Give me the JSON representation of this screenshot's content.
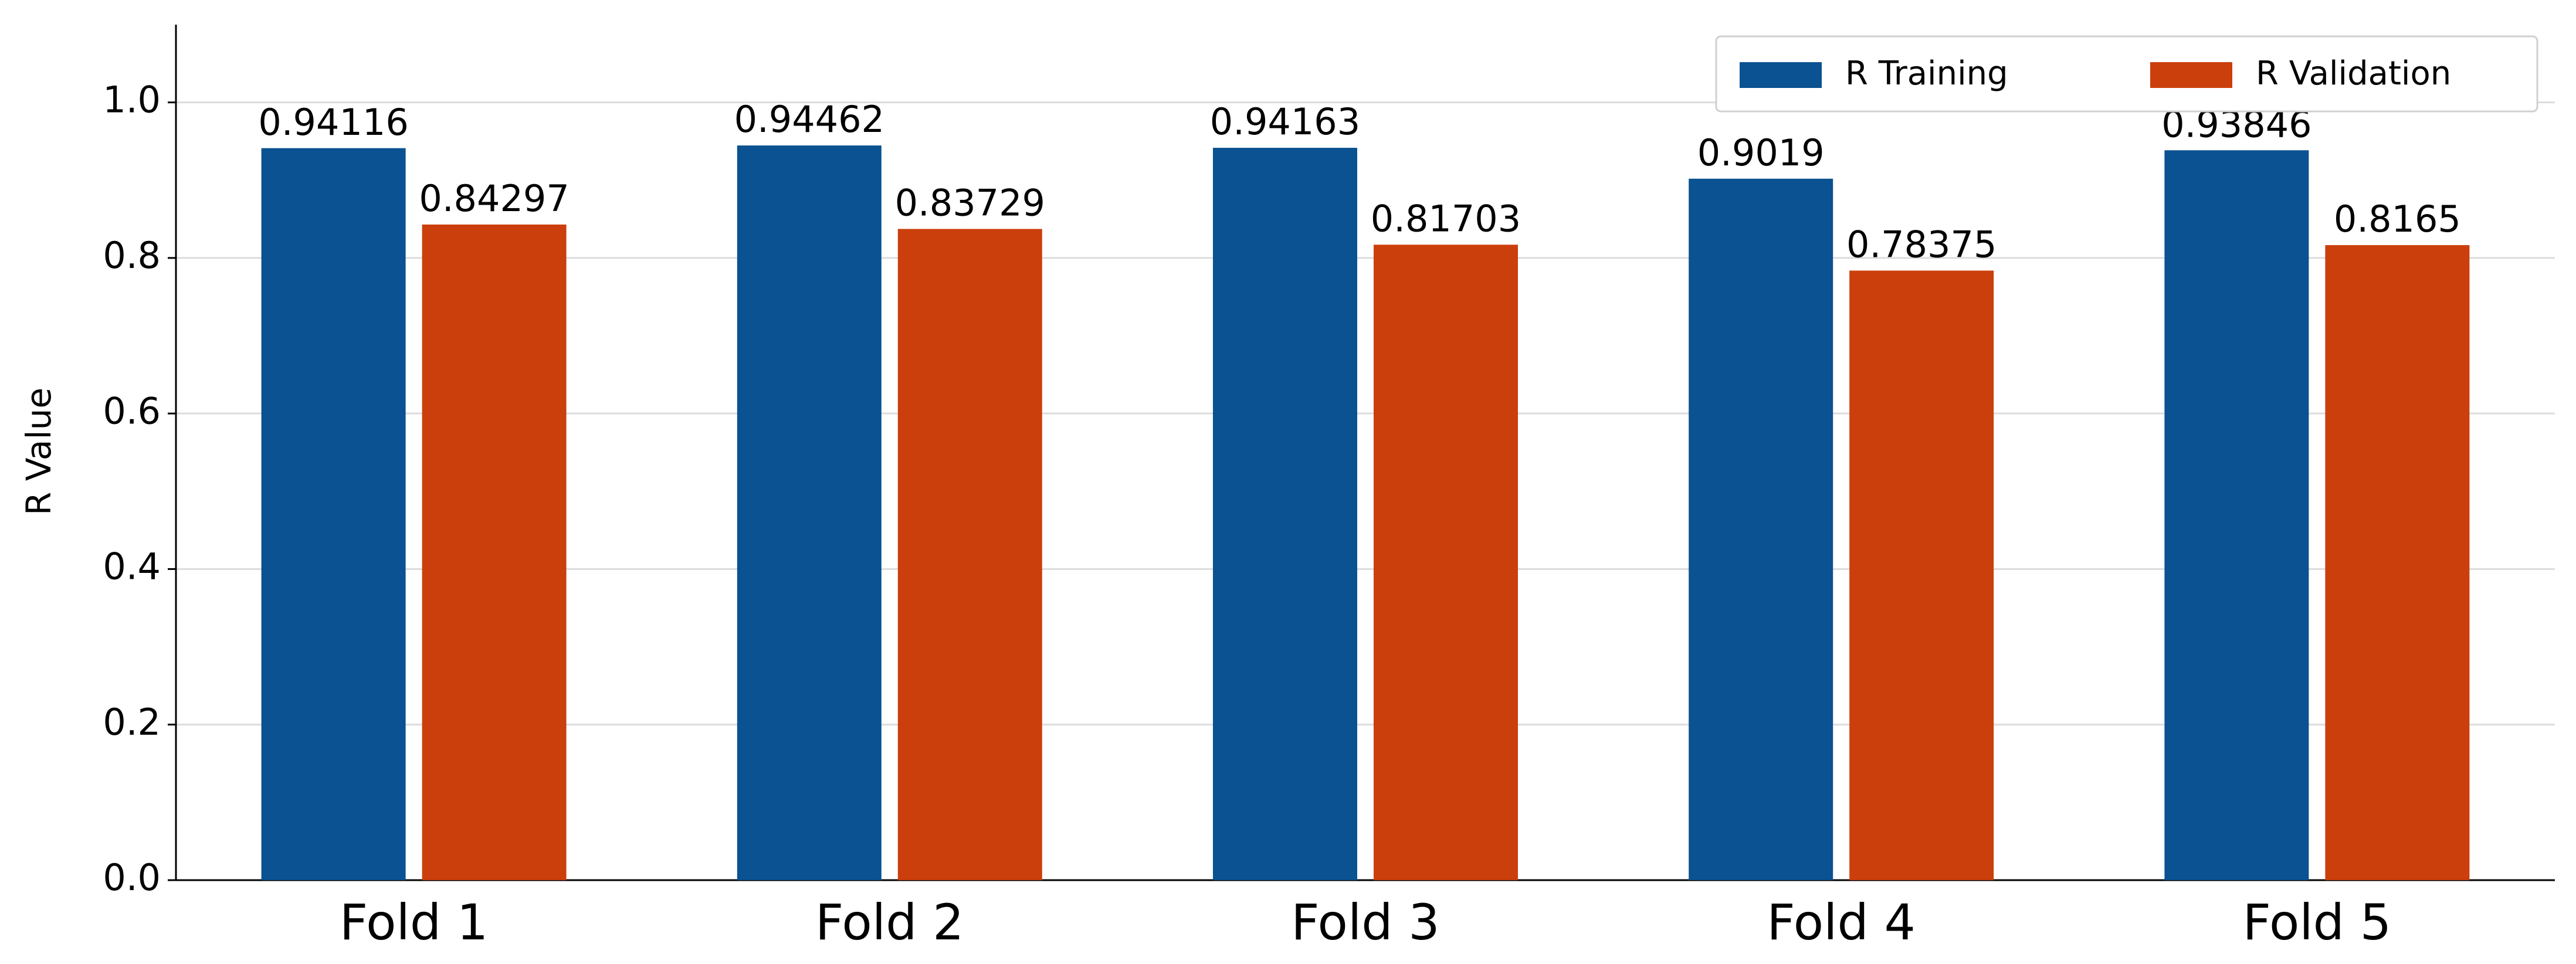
{
  "chart_data": {
    "type": "bar",
    "y_label": "R Value",
    "categories": [
      "Fold 1",
      "Fold 2",
      "Fold 3",
      "Fold 4",
      "Fold 5"
    ],
    "series": [
      {
        "name": "R Training",
        "color": "#0a5291",
        "values": [
          0.94116,
          0.94462,
          0.94163,
          0.9019,
          0.93846
        ]
      },
      {
        "name": "R Validation",
        "color": "#cb3f0c",
        "values": [
          0.84297,
          0.83729,
          0.81703,
          0.78375,
          0.8165
        ]
      }
    ],
    "ylim": [
      0,
      1.1
    ],
    "yticks": [
      {
        "value": 0,
        "label": "0.0"
      },
      0.2,
      0.4,
      0.6,
      0.8,
      {
        "value": 1,
        "label": "1.0"
      }
    ],
    "grid": true,
    "legend": "upper right"
  }
}
